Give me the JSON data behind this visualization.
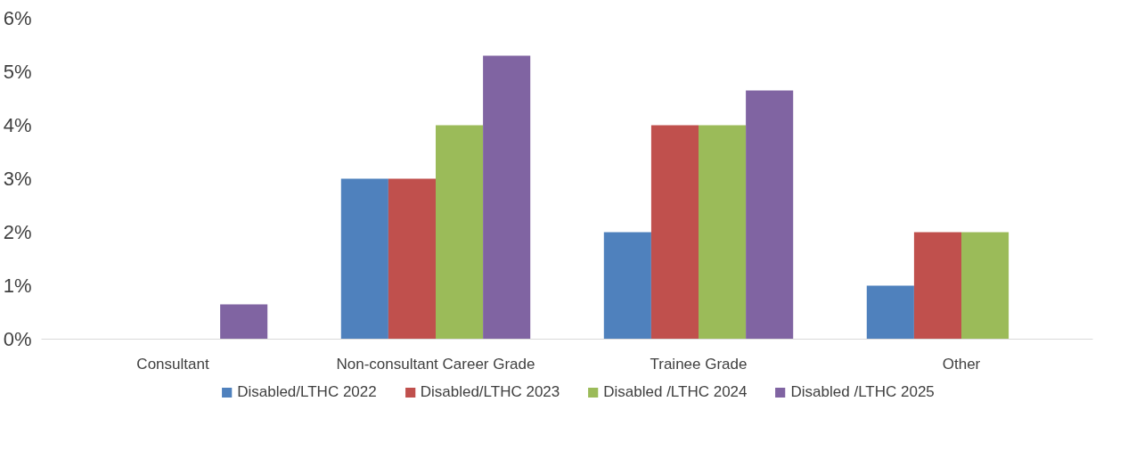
{
  "chart_data": {
    "type": "bar",
    "categories": [
      "Consultant",
      "Non-consultant Career Grade",
      "Trainee Grade",
      "Other"
    ],
    "series": [
      {
        "name": "Disabled/LTHC 2022",
        "color": "#4f81bd",
        "values": [
          0,
          3,
          2,
          1
        ]
      },
      {
        "name": "Disabled/LTHC 2023",
        "color": "#c0504d",
        "values": [
          0,
          3,
          4,
          2
        ]
      },
      {
        "name": "Disabled /LTHC 2024",
        "color": "#9bbb59",
        "values": [
          0,
          4,
          4,
          2
        ]
      },
      {
        "name": "Disabled /LTHC 2025",
        "color": "#8064a2",
        "values": [
          0.65,
          5.3,
          4.65,
          null
        ]
      }
    ],
    "ylim": [
      0,
      6
    ],
    "yticks": [
      {
        "value": 0,
        "label": "0%"
      },
      {
        "value": 1,
        "label": "1%"
      },
      {
        "value": 2,
        "label": "2%"
      },
      {
        "value": 3,
        "label": "3%"
      },
      {
        "value": 4,
        "label": "4%"
      },
      {
        "value": 5,
        "label": "5%"
      },
      {
        "value": 6,
        "label": "6%"
      }
    ],
    "grid": false,
    "legend": "bottom"
  }
}
